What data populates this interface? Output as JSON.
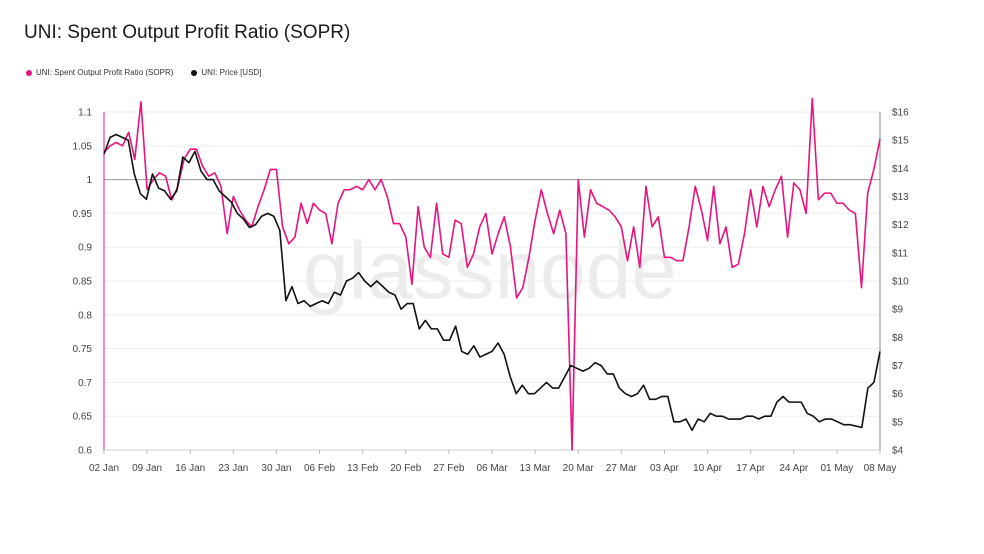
{
  "title": "UNI: Spent Output Profit Ratio (SOPR)",
  "watermark": "glassnode",
  "legend": [
    {
      "label": "UNI: Spent Output Profit Ratio (SOPR)",
      "color": "#e8137c"
    },
    {
      "label": "UNI: Price [USD]",
      "color": "#111111"
    }
  ],
  "chart_data": {
    "type": "line",
    "title": "UNI: Spent Output Profit Ratio (SOPR)",
    "x_tick_labels": [
      "02 Jan",
      "09 Jan",
      "16 Jan",
      "23 Jan",
      "30 Jan",
      "06 Feb",
      "13 Feb",
      "20 Feb",
      "27 Feb",
      "06 Mar",
      "13 Mar",
      "20 Mar",
      "27 Mar",
      "03 Apr",
      "10 Apr",
      "17 Apr",
      "24 Apr",
      "01 May",
      "08 May"
    ],
    "x_range": [
      "2021-01-02",
      "2021-05-11"
    ],
    "y_left": {
      "min": 0.6,
      "max": 1.1,
      "ticks": [
        "0.6",
        "0.65",
        "0.7",
        "0.75",
        "0.8",
        "0.85",
        "0.9",
        "0.95",
        "1",
        "1.05",
        "1.1"
      ],
      "reference_line": 1
    },
    "y_right": {
      "min": 4,
      "max": 16,
      "ticks": [
        "$4",
        "$5",
        "$6",
        "$7",
        "$8",
        "$9",
        "$10",
        "$11",
        "$12",
        "$13",
        "$14",
        "$15",
        "$16"
      ]
    },
    "grid": "horizontal",
    "legend_position": "top-left",
    "series": [
      {
        "name": "UNI: Spent Output Profit Ratio (SOPR)",
        "axis": "left",
        "color": "#e8137c",
        "values": [
          1.04,
          1.05,
          1.055,
          1.05,
          1.07,
          1.03,
          1.115,
          0.985,
          1.0,
          1.01,
          1.005,
          0.97,
          0.99,
          1.03,
          1.045,
          1.045,
          1.02,
          1.005,
          1.01,
          0.99,
          0.92,
          0.975,
          0.955,
          0.94,
          0.93,
          0.96,
          0.985,
          1.015,
          1.015,
          0.93,
          0.905,
          0.915,
          0.965,
          0.935,
          0.965,
          0.955,
          0.95,
          0.905,
          0.965,
          0.985,
          0.985,
          0.99,
          0.985,
          1.0,
          0.985,
          1.0,
          0.975,
          0.935,
          0.935,
          0.915,
          0.845,
          0.96,
          0.9,
          0.885,
          0.965,
          0.89,
          0.885,
          0.94,
          0.935,
          0.87,
          0.89,
          0.93,
          0.95,
          0.89,
          0.92,
          0.945,
          0.9,
          0.825,
          0.84,
          0.885,
          0.94,
          0.985,
          0.95,
          0.92,
          0.955,
          0.92,
          0.6,
          1.0,
          0.915,
          0.985,
          0.965,
          0.96,
          0.955,
          0.945,
          0.93,
          0.88,
          0.93,
          0.87,
          0.99,
          0.93,
          0.945,
          0.885,
          0.885,
          0.88,
          0.88,
          0.93,
          0.99,
          0.955,
          0.91,
          0.99,
          0.905,
          0.93,
          0.87,
          0.875,
          0.92,
          0.985,
          0.93,
          0.99,
          0.96,
          0.985,
          1.005,
          0.915,
          0.995,
          0.985,
          0.95,
          1.12,
          0.97,
          0.98,
          0.98,
          0.965,
          0.965,
          0.955,
          0.95,
          0.84,
          0.98,
          1.015,
          1.06
        ]
      },
      {
        "name": "UNI: Price [USD]",
        "axis": "right",
        "color": "#111111",
        "values": [
          14.5,
          15.1,
          15.2,
          15.1,
          15.0,
          13.8,
          13.1,
          12.9,
          13.8,
          13.3,
          13.2,
          12.9,
          13.2,
          14.4,
          14.2,
          14.6,
          13.9,
          13.6,
          13.6,
          13.2,
          13.0,
          12.8,
          12.4,
          12.2,
          11.9,
          12.0,
          12.3,
          12.4,
          12.3,
          11.8,
          9.3,
          9.8,
          9.2,
          9.3,
          9.1,
          9.2,
          9.3,
          9.2,
          9.6,
          9.5,
          10.0,
          10.1,
          10.3,
          10.0,
          9.8,
          10.0,
          9.8,
          9.6,
          9.5,
          9.0,
          9.2,
          9.2,
          8.3,
          8.6,
          8.3,
          8.3,
          7.9,
          7.9,
          8.4,
          7.5,
          7.4,
          7.7,
          7.3,
          7.4,
          7.5,
          7.8,
          7.4,
          6.6,
          6.0,
          6.3,
          6.0,
          6.0,
          6.2,
          6.4,
          6.2,
          6.2,
          6.6,
          7.0,
          6.9,
          6.8,
          6.9,
          7.1,
          7.0,
          6.7,
          6.7,
          6.2,
          6.0,
          5.9,
          6.0,
          6.3,
          5.8,
          5.8,
          5.9,
          5.9,
          5.0,
          5.0,
          5.1,
          4.7,
          5.1,
          5.0,
          5.3,
          5.2,
          5.2,
          5.1,
          5.1,
          5.1,
          5.2,
          5.2,
          5.1,
          5.2,
          5.2,
          5.7,
          5.9,
          5.7,
          5.7,
          5.7,
          5.3,
          5.2,
          5.0,
          5.1,
          5.1,
          5.0,
          4.9,
          4.9,
          4.85,
          4.8,
          6.2,
          6.4,
          7.5
        ]
      }
    ]
  }
}
